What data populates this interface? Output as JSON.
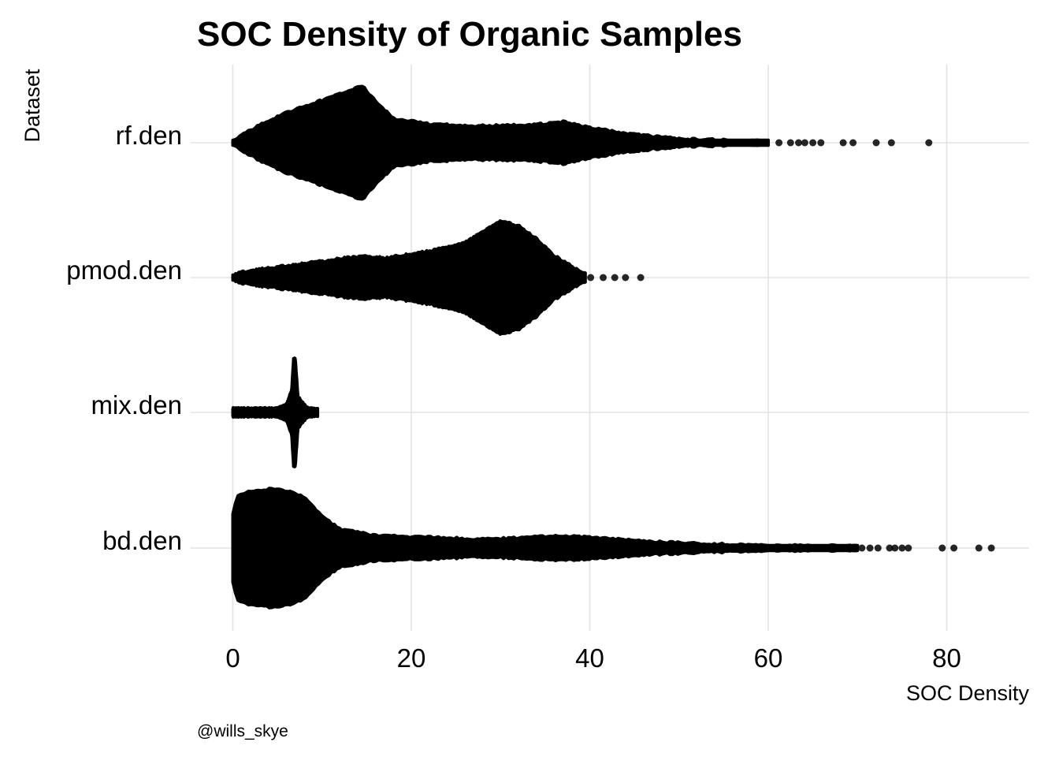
{
  "chart_data": {
    "type": "beeswarm",
    "title": "SOC Density of Organic Samples",
    "xlabel": "SOC Density",
    "ylabel": "Dataset",
    "caption": "@wills_skye",
    "xlim": [
      -2,
      89
    ],
    "x_ticks": [
      0,
      20,
      40,
      60,
      80
    ],
    "grid": "major",
    "legend": "none",
    "categories": [
      "rf.den",
      "pmod.den",
      "mix.den",
      "bd.den"
    ],
    "series": [
      {
        "name": "rf.den",
        "density_profile": [
          [
            0,
            0.03
          ],
          [
            1,
            0.12
          ],
          [
            3,
            0.28
          ],
          [
            6,
            0.48
          ],
          [
            9,
            0.62
          ],
          [
            12,
            0.78
          ],
          [
            14.5,
            0.9
          ],
          [
            16,
            0.66
          ],
          [
            18,
            0.38
          ],
          [
            22,
            0.3
          ],
          [
            26,
            0.27
          ],
          [
            30,
            0.27
          ],
          [
            34,
            0.29
          ],
          [
            37,
            0.33
          ],
          [
            40,
            0.24
          ],
          [
            44,
            0.15
          ],
          [
            50,
            0.06
          ],
          [
            56,
            0.04
          ],
          [
            60,
            0.025
          ]
        ],
        "outliers": [
          61.2,
          62.5,
          63.4,
          64.1,
          65.0,
          65.9,
          68.4,
          69.5,
          72.1,
          73.8,
          78.0
        ]
      },
      {
        "name": "pmod.den",
        "density_profile": [
          [
            0,
            0.03
          ],
          [
            1,
            0.09
          ],
          [
            4,
            0.15
          ],
          [
            8,
            0.22
          ],
          [
            12,
            0.3
          ],
          [
            14.5,
            0.34
          ],
          [
            17,
            0.31
          ],
          [
            22,
            0.42
          ],
          [
            26,
            0.55
          ],
          [
            28,
            0.72
          ],
          [
            30,
            0.9
          ],
          [
            32,
            0.82
          ],
          [
            34,
            0.62
          ],
          [
            36,
            0.35
          ],
          [
            38,
            0.18
          ],
          [
            39.5,
            0.06
          ]
        ],
        "outliers": [
          40.1,
          41.5,
          42.8,
          44.0,
          45.7
        ]
      },
      {
        "name": "mix.den",
        "density_profile": [
          [
            0,
            0.06
          ],
          [
            5,
            0.06
          ],
          [
            6,
            0.12
          ],
          [
            6.6,
            0.35
          ],
          [
            6.8,
            0.85
          ],
          [
            7.0,
            0.85
          ],
          [
            7.3,
            0.25
          ],
          [
            8.3,
            0.07
          ],
          [
            9.5,
            0.05
          ]
        ],
        "outliers": []
      },
      {
        "name": "bd.den",
        "density_profile": [
          [
            0,
            0.55
          ],
          [
            0.5,
            0.82
          ],
          [
            2,
            0.9
          ],
          [
            5,
            0.95
          ],
          [
            8,
            0.82
          ],
          [
            10,
            0.5
          ],
          [
            12,
            0.3
          ],
          [
            16,
            0.2
          ],
          [
            20,
            0.18
          ],
          [
            24,
            0.16
          ],
          [
            28,
            0.14
          ],
          [
            32,
            0.16
          ],
          [
            37,
            0.2
          ],
          [
            42,
            0.15
          ],
          [
            47,
            0.1
          ],
          [
            52,
            0.07
          ],
          [
            58,
            0.05
          ],
          [
            62,
            0.04
          ],
          [
            66,
            0.035
          ],
          [
            70,
            0.03
          ]
        ],
        "outliers": [
          70.5,
          71.4,
          72.3,
          73.6,
          74.2,
          75.0,
          75.7,
          79.5,
          80.8,
          83.6,
          85.0
        ]
      }
    ]
  }
}
